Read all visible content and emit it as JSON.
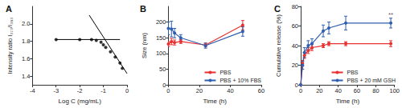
{
  "chart_data": [
    {
      "type": "scatter",
      "title": "A",
      "x_label": "Log C (mg/mL)",
      "y_label": "Intensity ratio I₃₇₃/I₃₈₃",
      "xlim": [
        -4,
        0
      ],
      "xticks": [
        -4,
        -3,
        -2,
        -1,
        0
      ],
      "ylim": [
        1.3,
        2.2
      ],
      "yticks": [
        1.4,
        1.6,
        1.8,
        {
          "value": 2,
          "label": "2.0"
        }
      ],
      "grid": false,
      "series": [
        {
          "type": "scatter",
          "color": "#000000",
          "marker": "circle",
          "x": [
            -3,
            -2,
            -1.5,
            -1.3,
            -1.1,
            -1.0,
            -0.9,
            -0.7,
            -0.5,
            -0.3,
            -0.2
          ],
          "values": [
            1.82,
            1.82,
            1.82,
            1.81,
            1.79,
            1.76,
            1.73,
            1.68,
            1.62,
            1.55,
            1.49
          ]
        },
        {
          "type": "line",
          "color": "#000000",
          "line_style": "solid",
          "x": [
            -3,
            -0.3
          ],
          "values": [
            1.82,
            1.82
          ]
        },
        {
          "type": "line",
          "color": "#000000",
          "line_style": "solid",
          "x": [
            -1.6,
            0
          ],
          "values": [
            2.1,
            1.43
          ]
        }
      ]
    },
    {
      "type": "line",
      "title": "B",
      "x_label": "Time (h)",
      "y_label": "Size (nm)",
      "xlim": [
        0,
        60
      ],
      "xticks": [
        0,
        20,
        40,
        60
      ],
      "ylim": [
        0,
        250
      ],
      "yticks": [
        0,
        50,
        100,
        150,
        200
      ],
      "grid": false,
      "legend": "lower right",
      "series": [
        {
          "name": "PBS",
          "color": "#e8302f",
          "marker": "circle",
          "x": [
            0,
            2,
            4,
            8,
            24,
            48
          ],
          "values": [
            130,
            138,
            135,
            138,
            127,
            190
          ],
          "errors": [
            8,
            10,
            8,
            6,
            6,
            15
          ]
        },
        {
          "name": "PBS + 10% FBS",
          "color": "#2f5fb0",
          "marker": "circle",
          "x": [
            0,
            2,
            4,
            8,
            24,
            48
          ],
          "values": [
            180,
            178,
            165,
            150,
            125,
            170
          ],
          "errors": [
            20,
            25,
            15,
            10,
            8,
            15
          ]
        }
      ]
    },
    {
      "type": "line",
      "title": "C",
      "x_label": "Time (h)",
      "y_label": "Cumulative release (%)",
      "xlim": [
        0,
        100
      ],
      "xticks": [
        0,
        20,
        40,
        60,
        80,
        100
      ],
      "ylim": [
        0,
        80
      ],
      "yticks": [
        0,
        20,
        40,
        60,
        80
      ],
      "grid": false,
      "legend": "lower right",
      "annotations": [
        {
          "text": "**",
          "x": 96,
          "y": 68
        }
      ],
      "series": [
        {
          "name": "PBS",
          "color": "#e8302f",
          "marker": "circle",
          "x": [
            0,
            2,
            4,
            8,
            12,
            24,
            30,
            48,
            96
          ],
          "values": [
            0,
            22,
            30,
            35,
            38,
            40,
            42,
            42,
            42
          ],
          "errors": [
            0,
            3,
            3,
            3,
            3,
            2,
            2,
            2,
            3
          ]
        },
        {
          "name": "PBS + 20 mM GSH",
          "color": "#2f5fb0",
          "marker": "circle",
          "x": [
            0,
            2,
            4,
            8,
            12,
            24,
            30,
            48,
            96
          ],
          "values": [
            0,
            20,
            33,
            40,
            42,
            55,
            58,
            63,
            63
          ],
          "errors": [
            0,
            4,
            5,
            5,
            5,
            6,
            6,
            7,
            5
          ]
        }
      ]
    }
  ]
}
